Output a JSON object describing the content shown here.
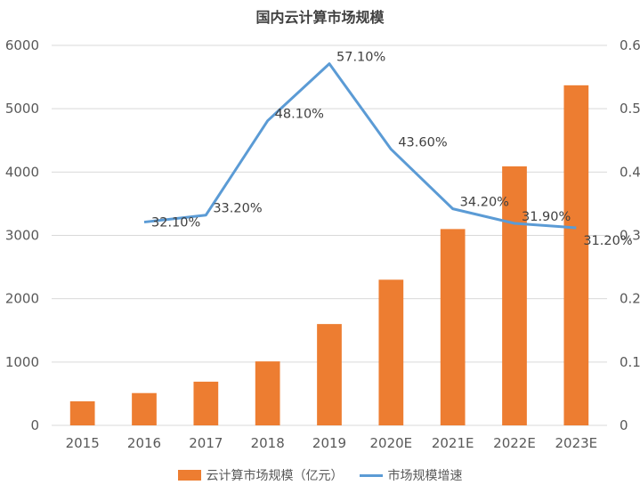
{
  "chart_data": {
    "type": "bar",
    "title": "国内云计算市场规模",
    "categories": [
      "2015",
      "2016",
      "2017",
      "2018",
      "2019",
      "2020E",
      "2021E",
      "2022E",
      "2023E"
    ],
    "series": [
      {
        "name": "云计算市场规模（亿元）",
        "type": "bar",
        "axis": "left",
        "color": "#ED7D31",
        "values": [
          380,
          510,
          690,
          1010,
          1600,
          2300,
          3100,
          4090,
          5370
        ]
      },
      {
        "name": "市场规模增速",
        "type": "line",
        "axis": "right",
        "color": "#5B9BD5",
        "values": [
          null,
          0.321,
          0.332,
          0.481,
          0.571,
          0.436,
          0.342,
          0.319,
          0.312
        ],
        "labels": [
          null,
          "32.10%",
          "33.20%",
          "48.10%",
          "57.10%",
          "43.60%",
          "34.20%",
          "31.90%",
          "31.20%"
        ]
      }
    ],
    "y_left": {
      "min": 0,
      "max": 6000,
      "ticks": [
        "0",
        "1000",
        "2000",
        "3000",
        "4000",
        "5000",
        "6000"
      ]
    },
    "y_right": {
      "min": 0,
      "max": 0.6,
      "ticks": [
        "0",
        "0.1",
        "0.2",
        "0.3",
        "0.4",
        "0.5",
        "0.6"
      ]
    },
    "grid": true,
    "legend_position": "bottom"
  }
}
